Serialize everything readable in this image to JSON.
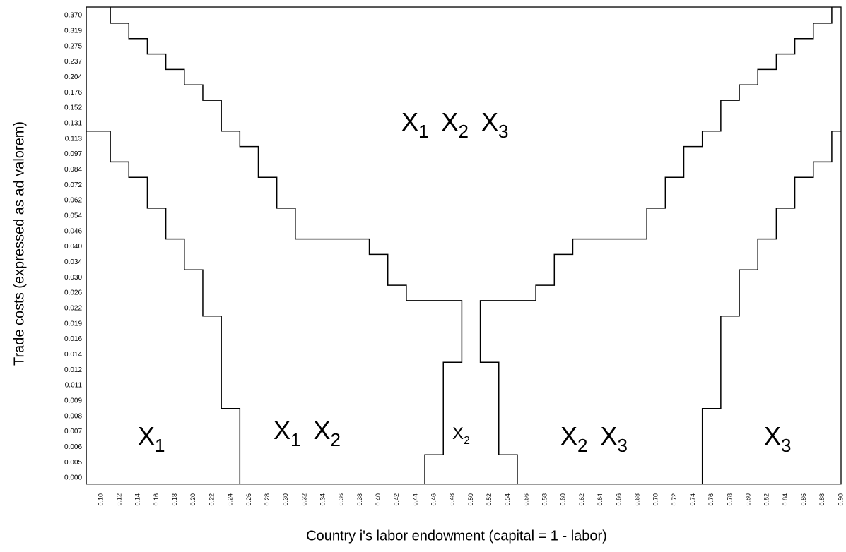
{
  "chart_data": {
    "type": "line",
    "x_label": "Country i's labor endowment  (capital = 1 - labor)",
    "y_label": "Trade costs (expressed as ad valorem)",
    "xlim": [
      0.084,
      0.9
    ],
    "ylim": [
      -0.002,
      0.398
    ],
    "xticks": [
      {
        "value": 0.1,
        "label": "0.10"
      },
      {
        "value": 0.12,
        "label": "0.12"
      },
      {
        "value": 0.14,
        "label": "0.14"
      },
      {
        "value": 0.16,
        "label": "0.16"
      },
      {
        "value": 0.18,
        "label": "0.18"
      },
      {
        "value": 0.2,
        "label": "0.20"
      },
      {
        "value": 0.22,
        "label": "0.22"
      },
      {
        "value": 0.24,
        "label": "0.24"
      },
      {
        "value": 0.26,
        "label": "0.26"
      },
      {
        "value": 0.28,
        "label": "0.28"
      },
      {
        "value": 0.3,
        "label": "0.30"
      },
      {
        "value": 0.32,
        "label": "0.32"
      },
      {
        "value": 0.34,
        "label": "0.34"
      },
      {
        "value": 0.36,
        "label": "0.36"
      },
      {
        "value": 0.38,
        "label": "0.38"
      },
      {
        "value": 0.4,
        "label": "0.40"
      },
      {
        "value": 0.42,
        "label": "0.42"
      },
      {
        "value": 0.44,
        "label": "0.44"
      },
      {
        "value": 0.46,
        "label": "0.46"
      },
      {
        "value": 0.48,
        "label": "0.48"
      },
      {
        "value": 0.5,
        "label": "0.50"
      },
      {
        "value": 0.52,
        "label": "0.52"
      },
      {
        "value": 0.54,
        "label": "0.54"
      },
      {
        "value": 0.56,
        "label": "0.56"
      },
      {
        "value": 0.58,
        "label": "0.58"
      },
      {
        "value": 0.6,
        "label": "0.60"
      },
      {
        "value": 0.62,
        "label": "0.62"
      },
      {
        "value": 0.64,
        "label": "0.64"
      },
      {
        "value": 0.66,
        "label": "0.66"
      },
      {
        "value": 0.68,
        "label": "0.68"
      },
      {
        "value": 0.7,
        "label": "0.70"
      },
      {
        "value": 0.72,
        "label": "0.72"
      },
      {
        "value": 0.74,
        "label": "0.74"
      },
      {
        "value": 0.76,
        "label": "0.76"
      },
      {
        "value": 0.78,
        "label": "0.78"
      },
      {
        "value": 0.8,
        "label": "0.80"
      },
      {
        "value": 0.82,
        "label": "0.82"
      },
      {
        "value": 0.84,
        "label": "0.84"
      },
      {
        "value": 0.86,
        "label": "0.86"
      },
      {
        "value": 0.88,
        "label": "0.88"
      },
      {
        "value": 0.9,
        "label": "0.90"
      }
    ],
    "yticks": [
      {
        "value": 0.37,
        "label": "0.370"
      },
      {
        "value": 0.319,
        "label": "0.319"
      },
      {
        "value": 0.275,
        "label": "0.275"
      },
      {
        "value": 0.237,
        "label": "0.237"
      },
      {
        "value": 0.204,
        "label": "0.204"
      },
      {
        "value": 0.176,
        "label": "0.176"
      },
      {
        "value": 0.152,
        "label": "0.152"
      },
      {
        "value": 0.131,
        "label": "0.131"
      },
      {
        "value": 0.113,
        "label": "0.113"
      },
      {
        "value": 0.097,
        "label": "0.097"
      },
      {
        "value": 0.084,
        "label": "0.084"
      },
      {
        "value": 0.072,
        "label": "0.072"
      },
      {
        "value": 0.062,
        "label": "0.062"
      },
      {
        "value": 0.054,
        "label": "0.054"
      },
      {
        "value": 0.046,
        "label": "0.046"
      },
      {
        "value": 0.04,
        "label": "0.040"
      },
      {
        "value": 0.034,
        "label": "0.034"
      },
      {
        "value": 0.03,
        "label": "0.030"
      },
      {
        "value": 0.026,
        "label": "0.026"
      },
      {
        "value": 0.022,
        "label": "0.022"
      },
      {
        "value": 0.019,
        "label": "0.019"
      },
      {
        "value": 0.016,
        "label": "0.016"
      },
      {
        "value": 0.014,
        "label": "0.014"
      },
      {
        "value": 0.012,
        "label": "0.012"
      },
      {
        "value": 0.011,
        "label": "0.011"
      },
      {
        "value": 0.009,
        "label": "0.009"
      },
      {
        "value": 0.008,
        "label": "0.008"
      },
      {
        "value": 0.007,
        "label": "0.007"
      },
      {
        "value": 0.006,
        "label": "0.006"
      },
      {
        "value": 0.005,
        "label": "0.005"
      },
      {
        "value": 0,
        "label": "0.000"
      }
    ],
    "series": [
      {
        "color": "#000000",
        "x": [
          0.11,
          0.11,
          0.13,
          0.13,
          0.15,
          0.15,
          0.17,
          0.17,
          0.19,
          0.19,
          0.21,
          0.21,
          0.23,
          0.23,
          0.25,
          0.25,
          0.27,
          0.27,
          0.29,
          0.29,
          0.31,
          0.31,
          0.39,
          0.39,
          0.41,
          0.41,
          0.43,
          0.43,
          0.49,
          0.49,
          0.47,
          0.47,
          0.45,
          0.45
        ],
        "values": [
          0.398,
          0.3445,
          0.3445,
          0.297,
          0.297,
          0.256,
          0.256,
          0.2205,
          0.2205,
          0.19,
          0.19,
          0.164,
          0.164,
          0.122,
          0.122,
          0.105,
          0.105,
          0.078,
          0.078,
          0.058,
          0.058,
          0.043,
          0.043,
          0.037,
          0.037,
          0.028,
          0.028,
          0.024,
          0.024,
          0.013,
          0.013,
          0.0055,
          0.0055,
          -0.002
        ]
      },
      {
        "color": "#000000",
        "x": [
          0.89,
          0.89,
          0.87,
          0.87,
          0.85,
          0.85,
          0.83,
          0.83,
          0.81,
          0.81,
          0.79,
          0.79,
          0.77,
          0.77,
          0.75,
          0.75,
          0.73,
          0.73,
          0.71,
          0.71,
          0.69,
          0.69,
          0.61,
          0.61,
          0.59,
          0.59,
          0.57,
          0.57,
          0.51,
          0.51,
          0.53,
          0.53,
          0.55,
          0.55
        ],
        "values": [
          0.398,
          0.3445,
          0.3445,
          0.297,
          0.297,
          0.256,
          0.256,
          0.2205,
          0.2205,
          0.19,
          0.19,
          0.164,
          0.164,
          0.122,
          0.122,
          0.105,
          0.105,
          0.078,
          0.078,
          0.058,
          0.058,
          0.043,
          0.043,
          0.037,
          0.037,
          0.028,
          0.028,
          0.024,
          0.024,
          0.013,
          0.013,
          0.0055,
          0.0055,
          -0.002
        ]
      },
      {
        "color": "#000000",
        "x": [
          0.084,
          0.11,
          0.11,
          0.13,
          0.13,
          0.15,
          0.15,
          0.17,
          0.17,
          0.19,
          0.19,
          0.21,
          0.21,
          0.23,
          0.23,
          0.25,
          0.25
        ],
        "values": [
          0.122,
          0.122,
          0.0905,
          0.0905,
          0.078,
          0.078,
          0.058,
          0.058,
          0.043,
          0.043,
          0.032,
          0.032,
          0.0205,
          0.0205,
          0.0085,
          0.0085,
          -0.002
        ]
      },
      {
        "color": "#000000",
        "x": [
          0.9,
          0.89,
          0.89,
          0.87,
          0.87,
          0.85,
          0.85,
          0.83,
          0.83,
          0.81,
          0.81,
          0.79,
          0.79,
          0.77,
          0.77,
          0.75,
          0.75
        ],
        "values": [
          0.122,
          0.122,
          0.0905,
          0.0905,
          0.078,
          0.078,
          0.058,
          0.058,
          0.043,
          0.043,
          0.032,
          0.032,
          0.0205,
          0.0205,
          0.0085,
          0.0085,
          -0.002
        ]
      }
    ],
    "annotations": [
      {
        "parts": [
          {
            "text": "X",
            "sub": "1"
          },
          {
            "text": "X",
            "sub": "2"
          },
          {
            "text": "X",
            "sub": "3"
          }
        ]
      },
      {
        "parts": [
          {
            "text": "X",
            "sub": "1"
          }
        ]
      },
      {
        "parts": [
          {
            "text": "X",
            "sub": "1"
          },
          {
            "text": "X",
            "sub": "2"
          }
        ]
      },
      {
        "parts": [
          {
            "text": "X",
            "sub": "2"
          }
        ]
      },
      {
        "parts": [
          {
            "text": "X",
            "sub": "2"
          },
          {
            "text": "X",
            "sub": "3"
          }
        ]
      },
      {
        "parts": [
          {
            "text": "X",
            "sub": "3"
          }
        ]
      }
    ]
  }
}
